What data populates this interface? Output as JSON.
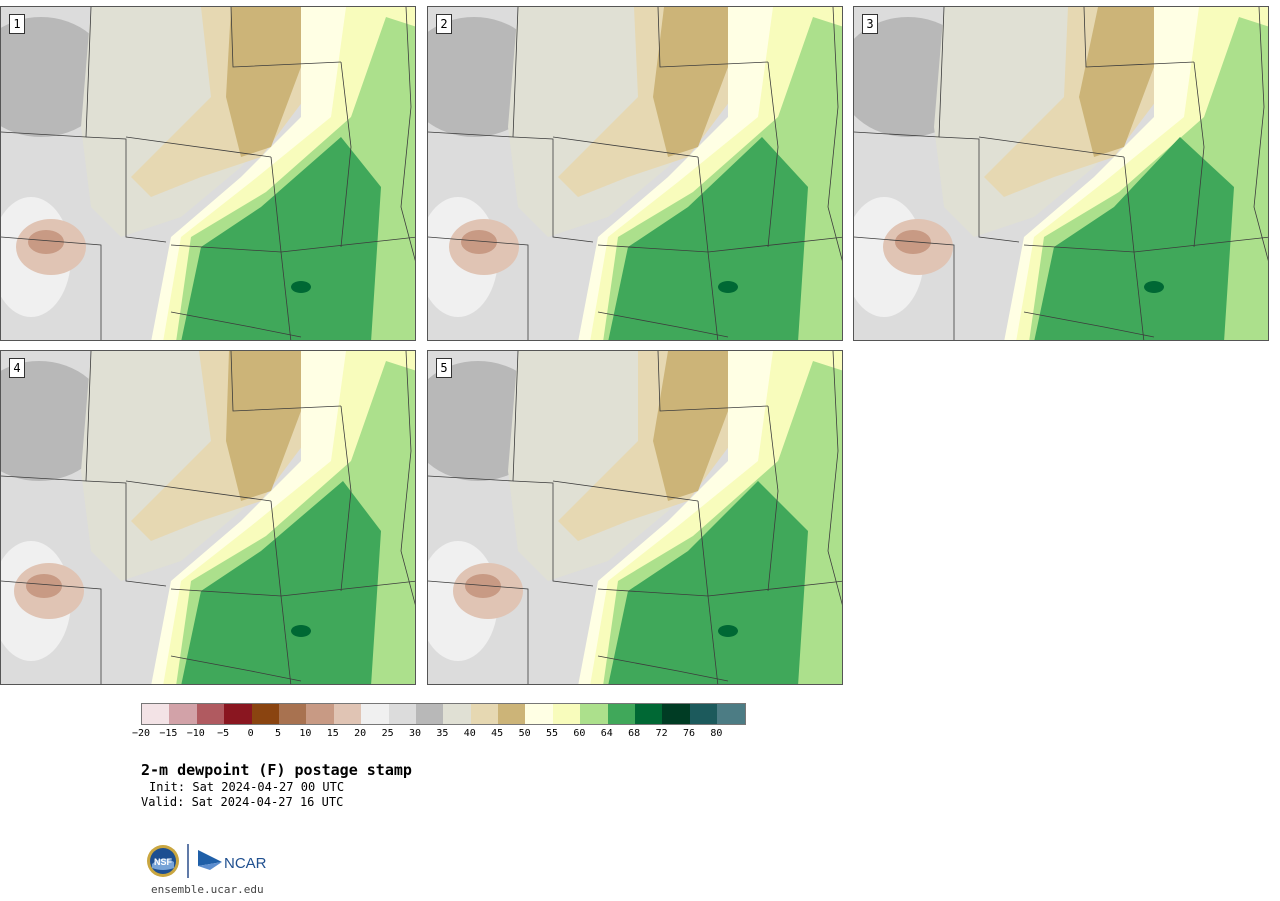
{
  "panels": [
    {
      "label": "1",
      "variant": 0
    },
    {
      "label": "2",
      "variant": 1
    },
    {
      "label": "3",
      "variant": 2
    },
    {
      "label": "4",
      "variant": 3
    },
    {
      "label": "5",
      "variant": 4
    }
  ],
  "colorbar": {
    "colors": [
      "#f3e3e6",
      "#d2a2a8",
      "#b05a60",
      "#8a1620",
      "#8a4410",
      "#a87250",
      "#c89a84",
      "#e0c4b4",
      "#f0f0f0",
      "#dcdcdc",
      "#b8b8b8",
      "#e0e0d4",
      "#e6d8b2",
      "#ccb478",
      "#ffffe4",
      "#f8fcbc",
      "#ace08c",
      "#40a85a",
      "#006834",
      "#003c24",
      "#1c5a5c",
      "#4c7c84"
    ],
    "ticks": [
      "−20",
      "−15",
      "−10",
      "−5",
      "0",
      "5",
      "10",
      "15",
      "20",
      "25",
      "30",
      "35",
      "40",
      "45",
      "50",
      "55",
      "60",
      "64",
      "68",
      "72",
      "76",
      "80"
    ]
  },
  "title": "2-m dewpoint (F) postage stamp",
  "init": "Init: Sat 2024-04-27 00 UTC",
  "valid": "Valid: Sat 2024-04-27 16 UTC",
  "logos": {
    "nsf": "NSF",
    "ncar": "NCAR"
  },
  "url": "ensemble.ucar.edu"
}
